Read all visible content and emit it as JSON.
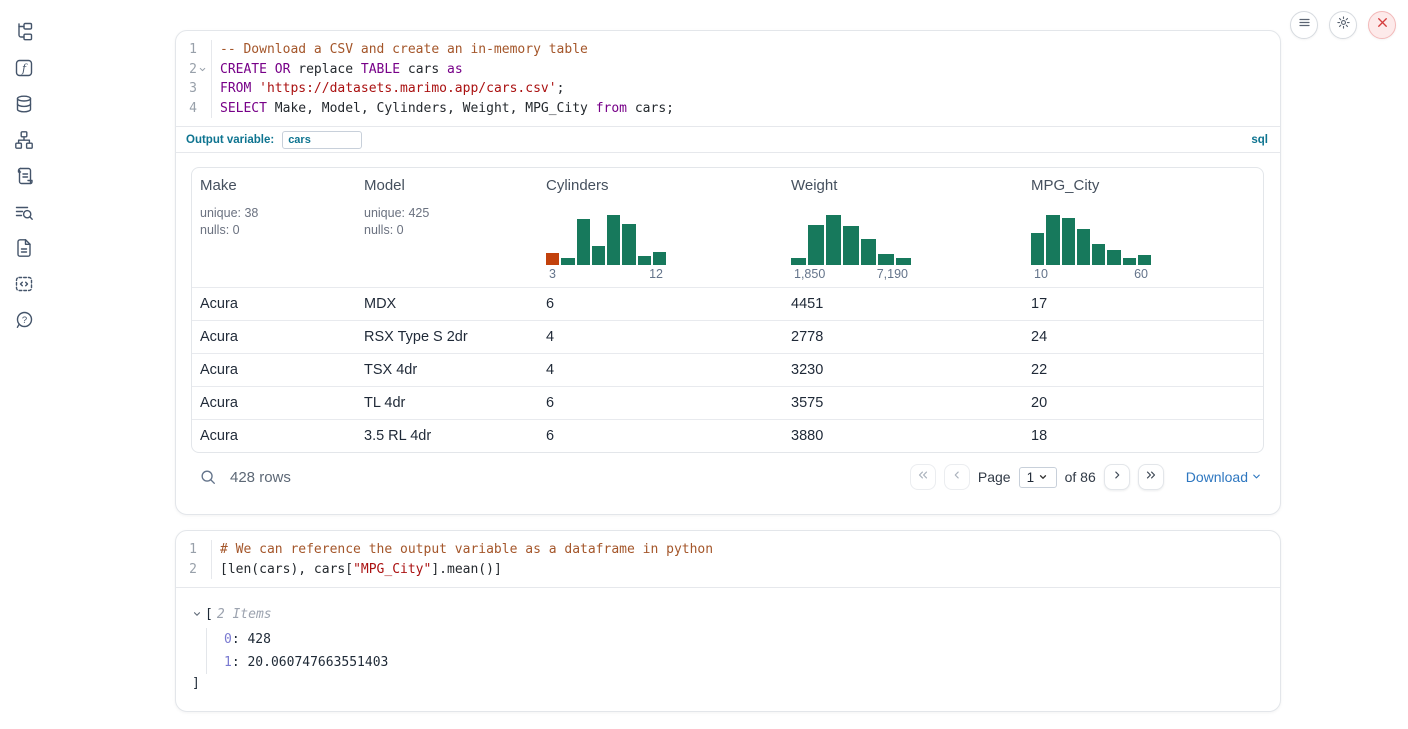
{
  "sidebar": {
    "icons": [
      "file-tree",
      "function-square",
      "database",
      "dependency-graph",
      "scroll",
      "log-search",
      "document",
      "snippets",
      "help"
    ]
  },
  "topbar": {
    "icons": [
      "menu",
      "settings",
      "shutdown"
    ]
  },
  "sql_cell": {
    "language_badge": "sql",
    "output_variable_label": "Output variable:",
    "output_variable_value": "cars",
    "lines": [
      {
        "num": "1",
        "fold": false,
        "tokens": [
          {
            "c": "comment",
            "t": "-- Download a CSV and create an in-memory table"
          }
        ]
      },
      {
        "num": "2",
        "fold": true,
        "tokens": [
          {
            "c": "kw",
            "t": "CREATE"
          },
          {
            "c": "plain",
            "t": " "
          },
          {
            "c": "kw",
            "t": "OR"
          },
          {
            "c": "plain",
            "t": " replace "
          },
          {
            "c": "kw",
            "t": "TABLE"
          },
          {
            "c": "plain",
            "t": " cars "
          },
          {
            "c": "kw",
            "t": "as"
          }
        ]
      },
      {
        "num": "3",
        "fold": false,
        "tokens": [
          {
            "c": "kw",
            "t": "FROM"
          },
          {
            "c": "plain",
            "t": " "
          },
          {
            "c": "str",
            "t": "'https://datasets.marimo.app/cars.csv'"
          },
          {
            "c": "plain",
            "t": ";"
          }
        ]
      },
      {
        "num": "4",
        "fold": false,
        "tokens": [
          {
            "c": "kw",
            "t": "SELECT"
          },
          {
            "c": "plain",
            "t": " Make, Model, Cylinders, Weight, MPG_City "
          },
          {
            "c": "kw",
            "t": "from"
          },
          {
            "c": "plain",
            "t": " cars;"
          }
        ]
      }
    ]
  },
  "table": {
    "columns": [
      {
        "name": "Make",
        "stats": [
          "unique: 38",
          "nulls: 0"
        ]
      },
      {
        "name": "Model",
        "stats": [
          "unique: 425",
          "nulls: 0"
        ]
      },
      {
        "name": "Cylinders",
        "histogram": {
          "bars": [
            0.24,
            0.14,
            0.93,
            0.39,
            1.0,
            0.83,
            0.18,
            0.26
          ],
          "orange_first": true,
          "min_label": "3",
          "max_label": "12"
        }
      },
      {
        "name": "Weight",
        "histogram": {
          "bars": [
            0.14,
            0.81,
            1.0,
            0.78,
            0.53,
            0.22,
            0.14
          ],
          "orange_first": false,
          "min_label": "1,850",
          "max_label": "7,190"
        }
      },
      {
        "name": "MPG_City",
        "histogram": {
          "bars": [
            0.65,
            1.0,
            0.95,
            0.72,
            0.43,
            0.3,
            0.14,
            0.21
          ],
          "orange_first": false,
          "min_label": "10",
          "max_label": "60"
        }
      }
    ],
    "rows": [
      [
        "Acura",
        "MDX",
        "6",
        "4451",
        "17"
      ],
      [
        "Acura",
        "RSX Type S 2dr",
        "4",
        "2778",
        "24"
      ],
      [
        "Acura",
        "TSX 4dr",
        "4",
        "3230",
        "22"
      ],
      [
        "Acura",
        "TL 4dr",
        "6",
        "3575",
        "20"
      ],
      [
        "Acura",
        "3.5 RL 4dr",
        "6",
        "3880",
        "18"
      ]
    ],
    "footer": {
      "row_count": "428 rows",
      "page_label": "Page",
      "page_value": "1",
      "of_label": "of 86",
      "download_label": "Download"
    },
    "colors": {
      "bar_green": "#17795c",
      "bar_orange": "#c2410c"
    }
  },
  "python_cell": {
    "lines": [
      {
        "num": "1",
        "fold": false,
        "tokens": [
          {
            "c": "comment",
            "t": "# We can reference the output variable as a dataframe in python"
          }
        ]
      },
      {
        "num": "2",
        "fold": false,
        "tokens": [
          {
            "c": "plain",
            "t": "[len(cars), cars["
          },
          {
            "c": "str",
            "t": "\"MPG_City\""
          },
          {
            "c": "plain",
            "t": "].mean()]"
          }
        ]
      }
    ]
  },
  "output_tree": {
    "open_bracket": "[",
    "items_label": "2 Items",
    "entries": [
      {
        "key": "0",
        "value": "428"
      },
      {
        "key": "1",
        "value": "20.060747663551403"
      }
    ],
    "close_bracket": "]"
  }
}
